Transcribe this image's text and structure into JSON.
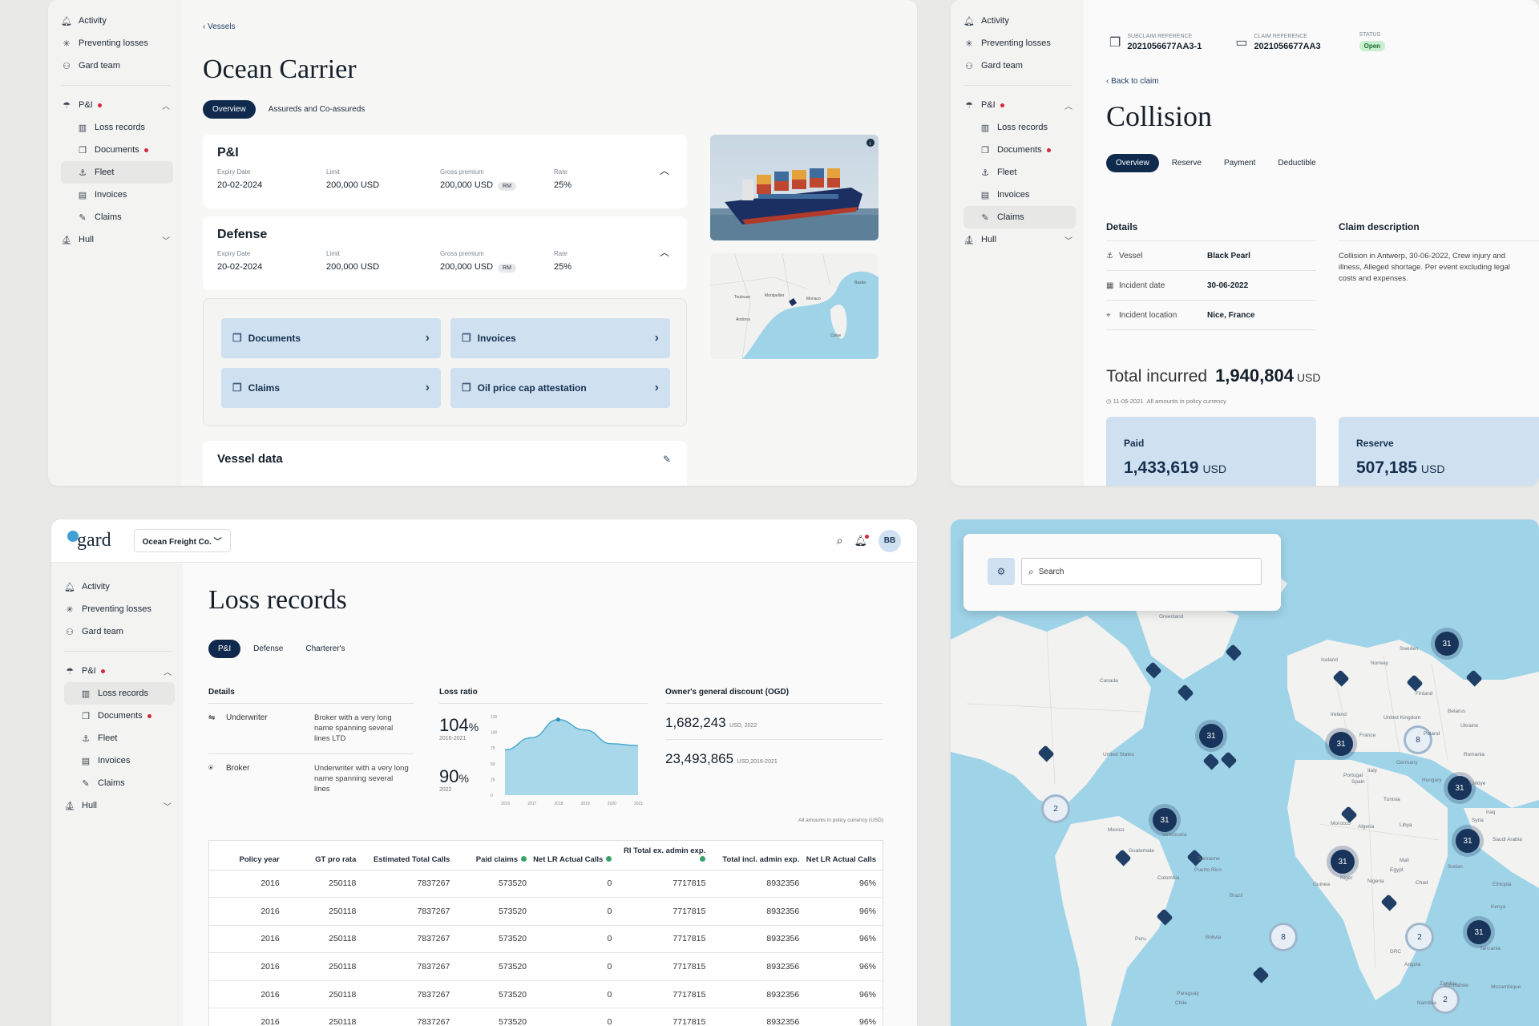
{
  "sidebar": {
    "activity": "Activity",
    "preventing": "Preventing losses",
    "gard_team": "Gard team",
    "pi": "P&I",
    "loss_records": "Loss records",
    "documents": "Documents",
    "fleet": "Fleet",
    "invoices": "Invoices",
    "claims": "Claims",
    "hull": "Hull"
  },
  "vessel": {
    "back": "Vessels",
    "title": "Ocean Carrier",
    "tabs": [
      "Overview",
      "Assureds and Co-assureds"
    ],
    "sections": [
      {
        "name": "P&I",
        "expiry_label": "Expiry Date",
        "expiry": "20-02-2024",
        "limit_label": "Limit",
        "limit": "200,000 USD",
        "premium_label": "Gross premium",
        "premium": "200,000 USD",
        "badge": "RM",
        "rate_label": "Rate",
        "rate": "25%"
      },
      {
        "name": "Defense",
        "expiry_label": "Expiry Date",
        "expiry": "20-02-2024",
        "limit_label": "Limit",
        "limit": "200,000 USD",
        "premium_label": "Gross premium",
        "premium": "200,000 USD",
        "badge": "RM",
        "rate_label": "Rate",
        "rate": "25%"
      }
    ],
    "links": [
      "Documents",
      "Invoices",
      "Claims",
      "Oil price cap attestation"
    ],
    "vessel_data": "Vessel data",
    "map_labels": [
      "Toulouse",
      "Montpellier",
      "Monaco",
      "Corse",
      "Andorra",
      "Bastia"
    ]
  },
  "claim": {
    "subclaim_label": "SUBCLAIM REFERENCE",
    "subclaim": "2021056677AA3-1",
    "claimref_label": "CLAIM REFERENCE",
    "claimref": "2021056677AA3",
    "status_label": "STATUS",
    "status": "Open",
    "back": "Back to claim",
    "title": "Collision",
    "tabs": [
      "Overview",
      "Reserve",
      "Payment",
      "Deductible"
    ],
    "details_title": "Details",
    "rows": [
      {
        "label": "Vessel",
        "value": "Black Pearl"
      },
      {
        "label": "Incident date",
        "value": "30-06-2022"
      },
      {
        "label": "Incident location",
        "value": "Nice, France"
      }
    ],
    "desc_title": "Claim description",
    "desc": "Collision in Antwerp, 30-06-2022, Crew injury and illness, Alleged shortage. Per event excluding legal costs and expenses.",
    "total_label": "Total incurred",
    "total_value": "1,940,804",
    "total_unit": "USD",
    "note_date": "11-06-2021",
    "note": "All amounts in policy currency",
    "paid_label": "Paid",
    "paid_value": "1,433,619",
    "reserve_label": "Reserve",
    "reserve_value": "507,185",
    "unit": "USD"
  },
  "loss": {
    "logo": "gard",
    "company": "Ocean Freight Co.",
    "avatar": "BB",
    "title": "Loss records",
    "tabs": [
      "P&I",
      "Defense",
      "Charterer's"
    ],
    "details_title": "Details",
    "underwriter_label": "Underwriter",
    "underwriter_text": "Broker with a very long name spanning several lines LTD",
    "broker_label": "Broker",
    "broker_text": "Underwriter with a very long name spanning several lines",
    "loss_ratio_title": "Loss ratio",
    "lr1": "104",
    "lr1_sub": "2016-2021",
    "lr2": "90",
    "lr2_sub": "2022",
    "pct": "%",
    "ogd_title": "Owner's general discount (OGD)",
    "ogd1": "1,682,243",
    "ogd1_sub": "USD, 2022",
    "ogd2": "23,493,865",
    "ogd2_sub": "USD,2016-2021",
    "note": "All amounts in policy currency (USD)",
    "columns": [
      "Policy year",
      "GT pro rata",
      "Estimated Total Calls",
      "Paid claims",
      "Net LR Actual Calls",
      "RI Total ex. admin exp.",
      "Total incl. admin exp.",
      "Net LR Actual Calls"
    ],
    "rows": [
      [
        "2016",
        "250118",
        "7837267",
        "573520",
        "0",
        "7717815",
        "8932356",
        "96%"
      ],
      [
        "2016",
        "250118",
        "7837267",
        "573520",
        "0",
        "7717815",
        "8932356",
        "96%"
      ],
      [
        "2016",
        "250118",
        "7837267",
        "573520",
        "0",
        "7717815",
        "8932356",
        "96%"
      ],
      [
        "2016",
        "250118",
        "7837267",
        "573520",
        "0",
        "7717815",
        "8932356",
        "96%"
      ],
      [
        "2016",
        "250118",
        "7837267",
        "573520",
        "0",
        "7717815",
        "8932356",
        "96%"
      ],
      [
        "2016",
        "250118",
        "7837267",
        "573520",
        "0",
        "7717815",
        "8932356",
        "96%"
      ]
    ]
  },
  "chart_data": {
    "type": "area",
    "x": [
      "2016",
      "2017",
      "2018",
      "2019",
      "2020",
      "2021"
    ],
    "values": [
      75,
      95,
      125,
      108,
      85,
      82
    ],
    "ylim": [
      0,
      130
    ],
    "yticks": [
      "130",
      "100",
      "75",
      "50",
      "25",
      "0"
    ],
    "color": "#a9d8ea"
  },
  "map": {
    "search_placeholder": "Search",
    "clusters": [
      "31",
      "31",
      "31",
      "31",
      "31",
      "31",
      "31",
      "31",
      "8",
      "2",
      "8",
      "2",
      "2"
    ],
    "labels": [
      "Greenland",
      "Iceland",
      "Canada",
      "United States",
      "Mexico",
      "Brazil",
      "Peru",
      "Colombia",
      "Bolivia",
      "Chile",
      "Norway",
      "Sweden",
      "Finland",
      "United Kingdom",
      "Germany",
      "Poland",
      "Ukraine",
      "France",
      "Spain",
      "Portugal",
      "Italy",
      "Romania",
      "Belarus",
      "Algeria",
      "Libya",
      "Egypt",
      "Mali",
      "Niger",
      "Nigeria",
      "Chad",
      "Sudan",
      "DRC",
      "Angola",
      "Zambia",
      "Namibia",
      "Türkiye",
      "Syria",
      "Iraq",
      "Saudi Arabia",
      "Ethiopia",
      "Kenya",
      "Tanzania",
      "Mozambique",
      "Zimbabwe",
      "Venezuela",
      "Suriname",
      "Paraguay",
      "Guinea",
      "Morocco",
      "Ireland",
      "Puerto Rico",
      "Guatemala",
      "Tunisia",
      "Hungary"
    ]
  },
  "colors": {
    "navy": "#0f2a4d",
    "ocean": "#9fd3e8",
    "land": "#f2f2f0",
    "card_blue": "#cfe0f0",
    "red": "#d7263d",
    "open_green": "#c8f0cf"
  },
  "icons": [
    "bell-icon",
    "sparkle-icon",
    "team-icon",
    "umbrella-icon",
    "bar-chart-icon",
    "document-icon",
    "anchor-icon",
    "invoice-icon",
    "claim-icon",
    "hull-icon",
    "search-icon",
    "filter-icon"
  ]
}
